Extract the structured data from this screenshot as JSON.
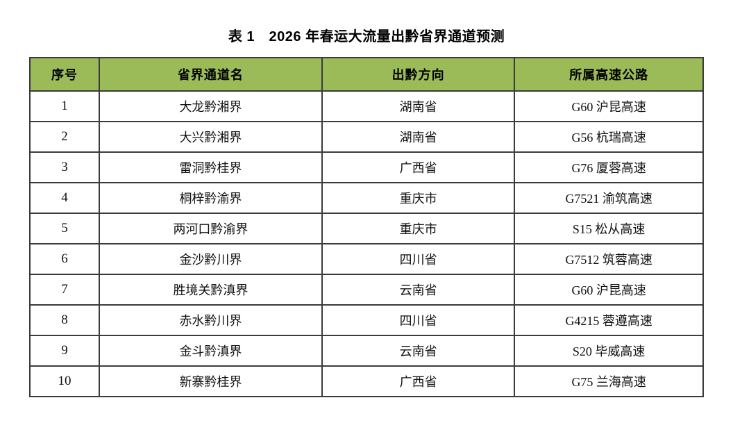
{
  "page": {
    "title": "表 1　2026 年春运大流量出黔省界通道预测"
  },
  "colors": {
    "header_bg": "#9BBB59",
    "border": "#3B3B3B",
    "text": "#111111",
    "page_bg": "#FFFFFF"
  },
  "table": {
    "columns": [
      "序号",
      "省界通道名",
      "出黔方向",
      "所属高速公路"
    ],
    "rows": [
      [
        "1",
        "大龙黔湘界",
        "湖南省",
        "G60 沪昆高速"
      ],
      [
        "2",
        "大兴黔湘界",
        "湖南省",
        "G56 杭瑞高速"
      ],
      [
        "3",
        "雷洞黔桂界",
        "广西省",
        "G76 厦蓉高速"
      ],
      [
        "4",
        "桐梓黔渝界",
        "重庆市",
        "G7521 渝筑高速"
      ],
      [
        "5",
        "两河口黔渝界",
        "重庆市",
        "S15 松从高速"
      ],
      [
        "6",
        "金沙黔川界",
        "四川省",
        "G7512 筑蓉高速"
      ],
      [
        "7",
        "胜境关黔滇界",
        "云南省",
        "G60 沪昆高速"
      ],
      [
        "8",
        "赤水黔川界",
        "四川省",
        "G4215 蓉遵高速"
      ],
      [
        "9",
        "金斗黔滇界",
        "云南省",
        "S20 毕威高速"
      ],
      [
        "10",
        "新寨黔桂界",
        "广西省",
        "G75 兰海高速"
      ]
    ]
  }
}
